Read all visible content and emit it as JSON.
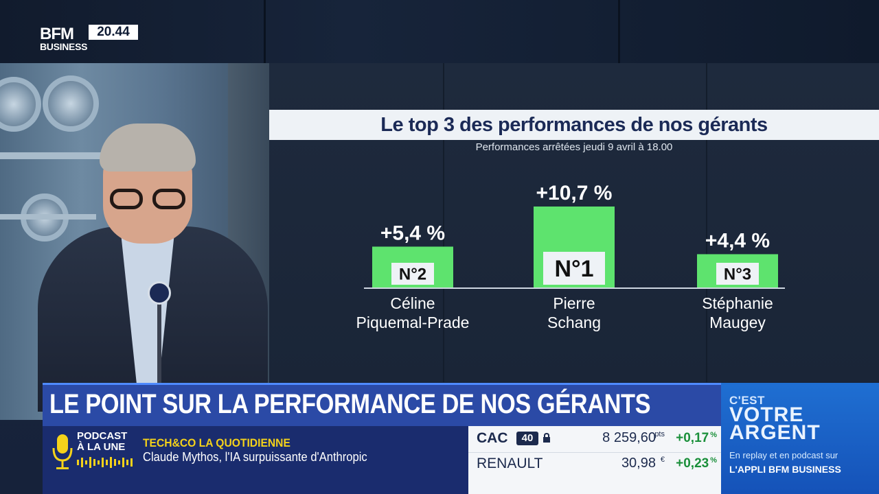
{
  "channel": {
    "logo_top": "BFM",
    "logo_bottom": "BUSINESS",
    "clock": "20.44"
  },
  "chart_data": {
    "type": "bar",
    "title": "Le top 3 des performances de nos gérants",
    "subtitle": "Performances arrêtées jeudi 9 avril à 18.00",
    "categories": [
      "Céline Piquemal-Prade",
      "Pierre Schang",
      "Stéphanie Maugey"
    ],
    "category_lines": [
      [
        "Céline",
        "Piquemal-Prade"
      ],
      [
        "Pierre",
        "Schang"
      ],
      [
        "Stéphanie",
        "Maugey"
      ]
    ],
    "ranks": [
      "N°2",
      "N°1",
      "N°3"
    ],
    "values": [
      5.4,
      10.7,
      4.4
    ],
    "value_labels": [
      "+5,4 %",
      "+10,7 %",
      "+4,4 %"
    ],
    "unit": "%",
    "ylim": [
      0,
      10.7
    ],
    "grid": false,
    "bar_color": "#5ee36e"
  },
  "banner": {
    "headline": "LE POINT SUR LA PERFORMANCE DE NOS GÉRANTS"
  },
  "podcast": {
    "icon": "microphone-icon",
    "label_line1": "PODCAST",
    "label_line2": "À LA UNE",
    "show": "TECH&CO LA QUOTIDIENNE",
    "episode": "Claude Mythos, l'IA surpuissante d'Anthropic"
  },
  "ticker": {
    "rows": [
      {
        "name": "CAC",
        "badge": "40",
        "value": "8 259,60",
        "unit": "pts",
        "change": "+0,17",
        "change_unit": "%"
      },
      {
        "name": "RENAULT",
        "badge": "",
        "value": "30,98",
        "unit": "€",
        "change": "+0,23",
        "change_unit": "%"
      }
    ],
    "change_color": "#1a8f3a"
  },
  "promo": {
    "line1": "C'EST",
    "line2": "VOTRE",
    "line3": "ARGENT",
    "line4": "En replay et en podcast sur",
    "line5": "L'APPLI BFM BUSINESS"
  }
}
